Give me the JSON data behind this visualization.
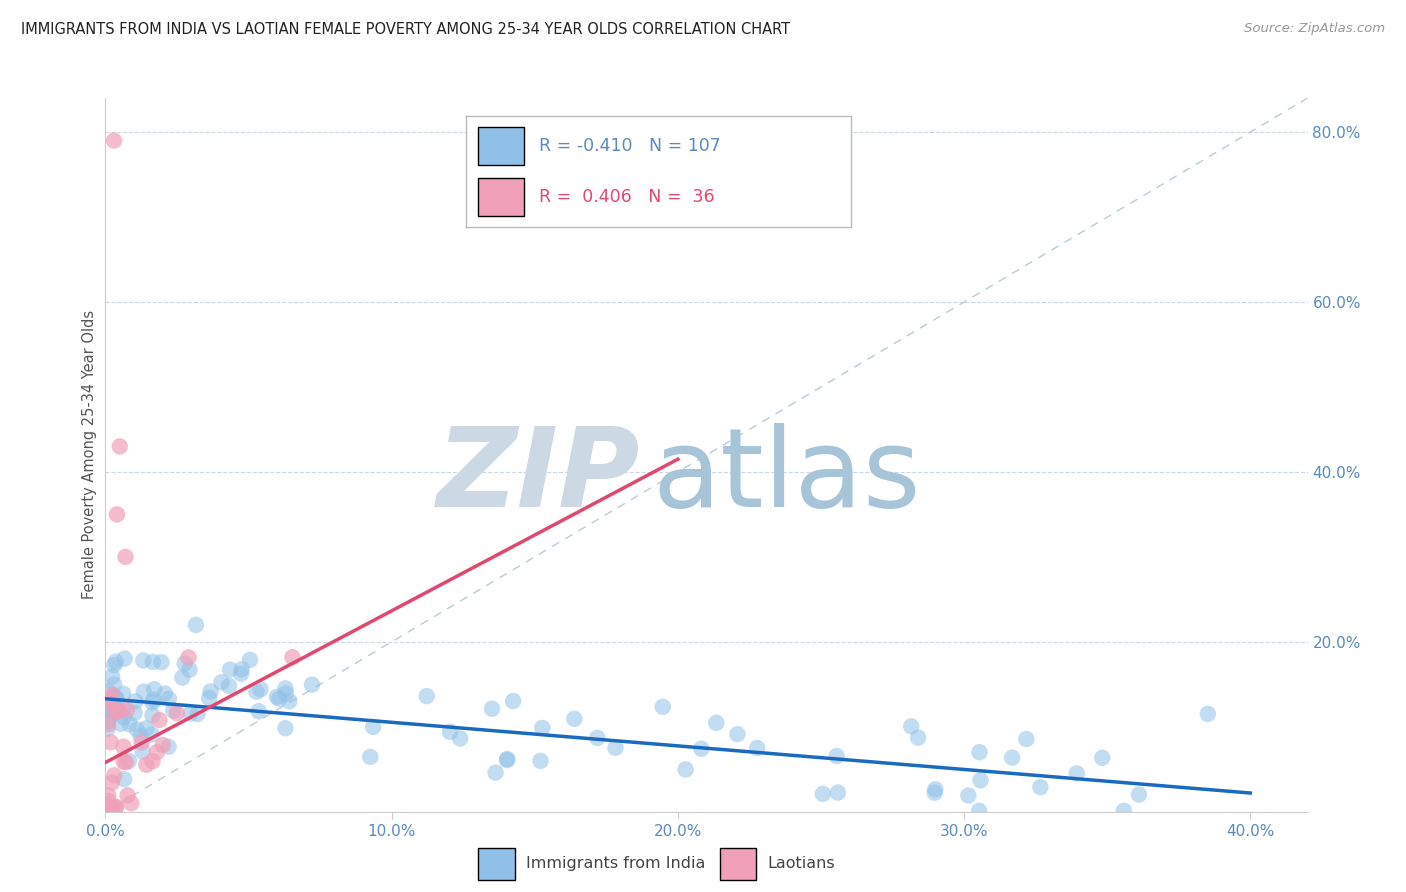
{
  "title": "IMMIGRANTS FROM INDIA VS LAOTIAN FEMALE POVERTY AMONG 25-34 YEAR OLDS CORRELATION CHART",
  "source": "Source: ZipAtlas.com",
  "ylabel": "Female Poverty Among 25-34 Year Olds",
  "xlim": [
    0.0,
    0.42
  ],
  "ylim": [
    0.0,
    0.84
  ],
  "legend_india": "Immigrants from India",
  "legend_laotian": "Laotians",
  "r_india": "-0.410",
  "n_india": "107",
  "r_laotian": "0.406",
  "n_laotian": "36",
  "color_india": "#90c0e8",
  "color_laotian": "#f0a0b8",
  "color_india_line": "#1a6bbf",
  "color_laotian_line": "#e04870",
  "color_diagonal": "#b8ccd8",
  "watermark_zip": "#ccd8e4",
  "watermark_atlas": "#a8c4d8",
  "background": "#ffffff",
  "tick_color": "#5a8abf",
  "grid_color": "#ccd8e4",
  "india_trend_x": [
    0.0,
    0.4
  ],
  "india_trend_y": [
    0.133,
    0.022
  ],
  "laotian_trend_x": [
    0.0,
    0.2
  ],
  "laotian_trend_y": [
    0.058,
    0.415
  ]
}
